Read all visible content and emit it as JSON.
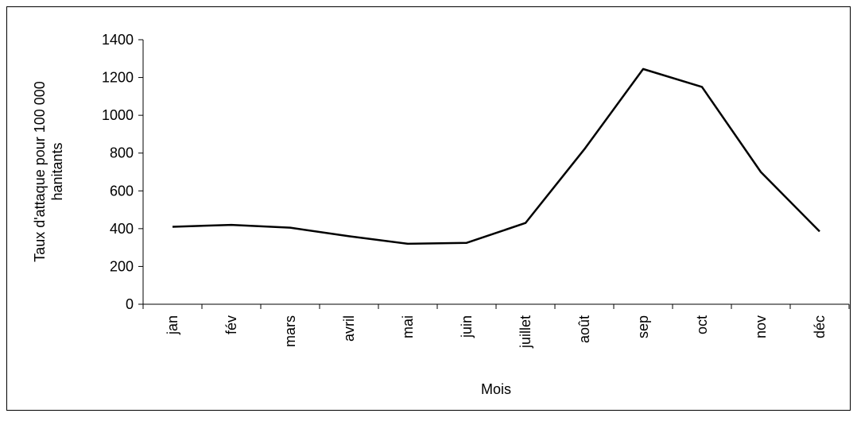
{
  "chart_data": {
    "type": "line",
    "ylabel": [
      "Taux d'attaque pour 100 000",
      "hanitants"
    ],
    "xlabel": "Mois",
    "categories": [
      "jan",
      "fév",
      "mars",
      "avril",
      "mai",
      "juin",
      "juillet",
      "août",
      "sep",
      "oct",
      "nov",
      "déc"
    ],
    "values": [
      410,
      420,
      405,
      360,
      320,
      325,
      430,
      820,
      1245,
      1150,
      700,
      385
    ],
    "color": "#000000",
    "ylim": [
      0,
      1400
    ],
    "yticks": [
      0,
      200,
      400,
      600,
      800,
      1000,
      1200,
      1400
    ],
    "grid": false
  }
}
